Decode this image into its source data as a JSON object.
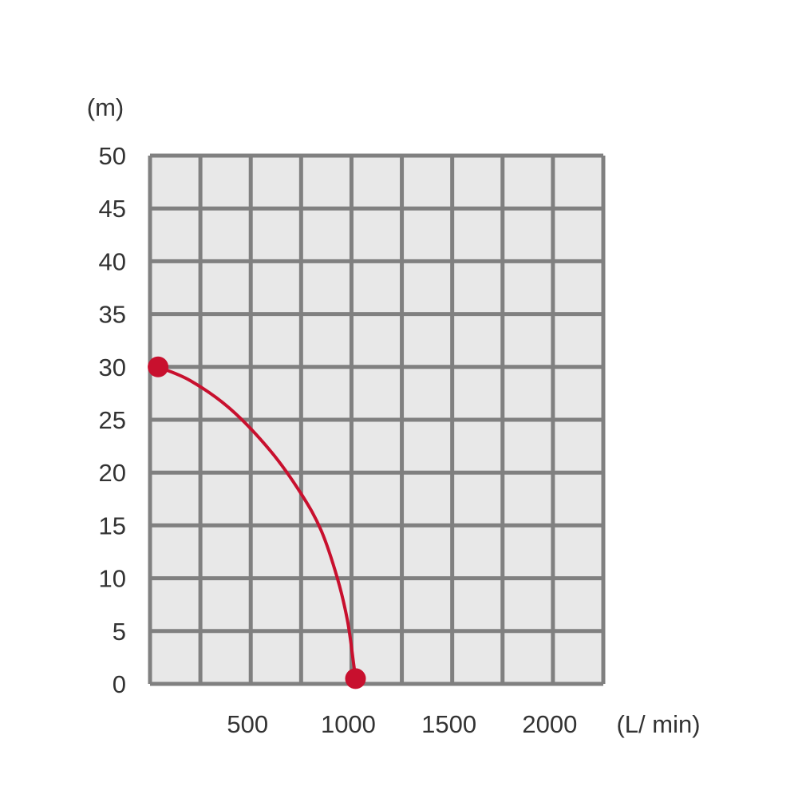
{
  "chart_data": {
    "type": "line",
    "title": "",
    "xlabel": "(L/ min)",
    "ylabel": "(m)",
    "xlim": [
      0,
      2250
    ],
    "ylim": [
      0,
      50
    ],
    "x_ticks": [
      500,
      1000,
      1500,
      2000
    ],
    "x_tick_labels": [
      "500",
      "1000",
      "1500",
      "2000"
    ],
    "y_ticks": [
      0,
      5,
      10,
      15,
      20,
      25,
      30,
      35,
      40,
      45,
      50
    ],
    "y_tick_labels": [
      "0",
      "5",
      "10",
      "15",
      "20",
      "25",
      "30",
      "35",
      "40",
      "45",
      "50"
    ],
    "grid": true,
    "legend": "none",
    "series": [
      {
        "color": "#c8102e",
        "x": [
          40,
          200,
          400,
          600,
          750,
          850,
          930,
          980,
          1010,
          1020
        ],
        "y": [
          30,
          28.7,
          26,
          22,
          18,
          14.5,
          10,
          6,
          2,
          0.5
        ],
        "markers": [
          {
            "x": 40,
            "y": 30
          },
          {
            "x": 1020,
            "y": 0.5
          }
        ]
      }
    ],
    "colors": {
      "plot_background": "#e8e8e8",
      "grid": "#808080",
      "curve": "#c8102e"
    }
  }
}
